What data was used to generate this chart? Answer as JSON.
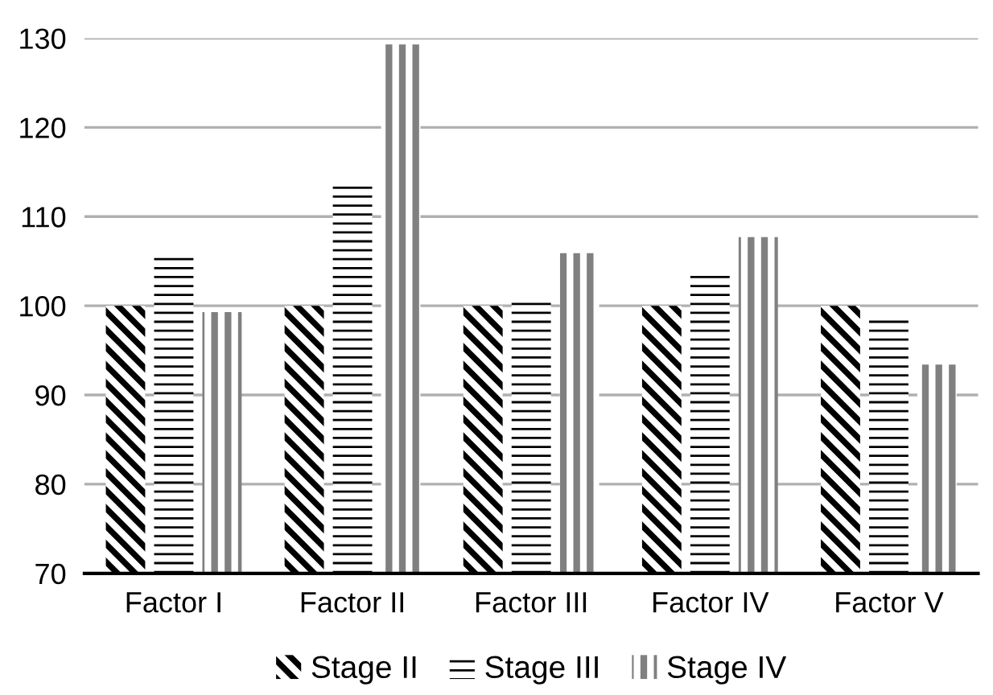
{
  "chart_data": {
    "type": "bar",
    "categories": [
      "Factor I",
      "Factor II",
      "Factor III",
      "Factor IV",
      "Factor V"
    ],
    "series": [
      {
        "name": "Stage II",
        "color": "#000000",
        "values": [
          100,
          100,
          100,
          100,
          100
        ]
      },
      {
        "name": "Stage III",
        "color": "#000000",
        "values": [
          105.5,
          113.6,
          100.6,
          103.9,
          98.4
        ]
      },
      {
        "name": "Stage IV",
        "color": "#808080",
        "values": [
          99.3,
          129.3,
          105.9,
          107.7,
          93.4
        ]
      }
    ],
    "ylim": [
      70,
      130
    ],
    "yticks": [
      70,
      80,
      90,
      100,
      110,
      120,
      130
    ],
    "grid": "y",
    "legend": "bottom"
  }
}
